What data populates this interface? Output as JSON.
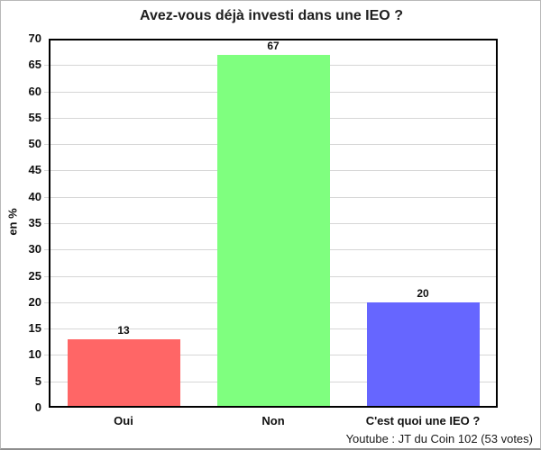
{
  "chart_data": {
    "type": "bar",
    "title": "Avez-vous déjà investi dans une IEO ?",
    "ylabel": "en %",
    "xlabel": "",
    "categories": [
      "Oui",
      "Non",
      "C'est quoi une IEO ?"
    ],
    "values": [
      13,
      67,
      20
    ],
    "colors": [
      "#ff6666",
      "#7fff7f",
      "#6666ff"
    ],
    "ylim": [
      0,
      70
    ],
    "ytick_step": 5,
    "grid": true,
    "legend": "none",
    "caption": "Youtube : JT du Coin 102 (53 votes)"
  }
}
